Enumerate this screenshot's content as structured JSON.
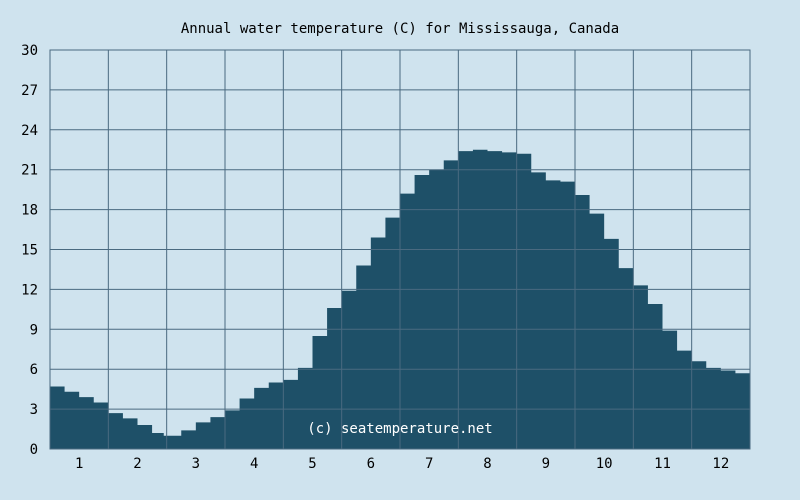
{
  "chart_data": {
    "type": "area",
    "title": "Annual water temperature (C) for Mississauga, Canada",
    "xlabel": "",
    "ylabel": "",
    "x_tick_labels": [
      "1",
      "2",
      "3",
      "4",
      "5",
      "6",
      "7",
      "8",
      "9",
      "10",
      "11",
      "12"
    ],
    "y_ticks": [
      0,
      3,
      6,
      9,
      12,
      15,
      18,
      21,
      24,
      27,
      30
    ],
    "xlim": [
      0.5,
      12.5
    ],
    "ylim": [
      0,
      30
    ],
    "grid": true,
    "watermark": "(c) seatemperature.net",
    "colors": {
      "background": "#cfe3ee",
      "fill": "#1e5068",
      "grid": "#4a6a80"
    },
    "series": [
      {
        "x": [
          0.5,
          0.75,
          1.0,
          1.25,
          1.5,
          1.75,
          2.0,
          2.25,
          2.45,
          2.75,
          3.0,
          3.25,
          3.5,
          3.75,
          4.0,
          4.25,
          4.5,
          4.75,
          5.0,
          5.25,
          5.5,
          5.75,
          6.0,
          6.25,
          6.5,
          6.75,
          7.0,
          7.25,
          7.5,
          7.75,
          8.0,
          8.25,
          8.5,
          8.75,
          9.0,
          9.25,
          9.5,
          9.75,
          10.0,
          10.25,
          10.5,
          10.75,
          11.0,
          11.25,
          11.5,
          11.75,
          12.0,
          12.25,
          12.5
        ],
        "values": [
          4.7,
          4.3,
          3.9,
          3.5,
          2.7,
          2.3,
          1.8,
          1.2,
          1.0,
          1.4,
          2.0,
          2.4,
          2.9,
          3.8,
          4.6,
          5.0,
          5.2,
          6.1,
          8.5,
          10.6,
          11.9,
          13.8,
          15.9,
          17.4,
          19.2,
          20.6,
          21.0,
          21.7,
          22.4,
          22.5,
          22.4,
          22.3,
          22.2,
          20.8,
          20.2,
          20.1,
          19.1,
          17.7,
          15.8,
          13.6,
          12.3,
          10.9,
          8.9,
          7.4,
          6.6,
          6.1,
          5.9,
          5.7,
          5.5
        ]
      }
    ]
  }
}
